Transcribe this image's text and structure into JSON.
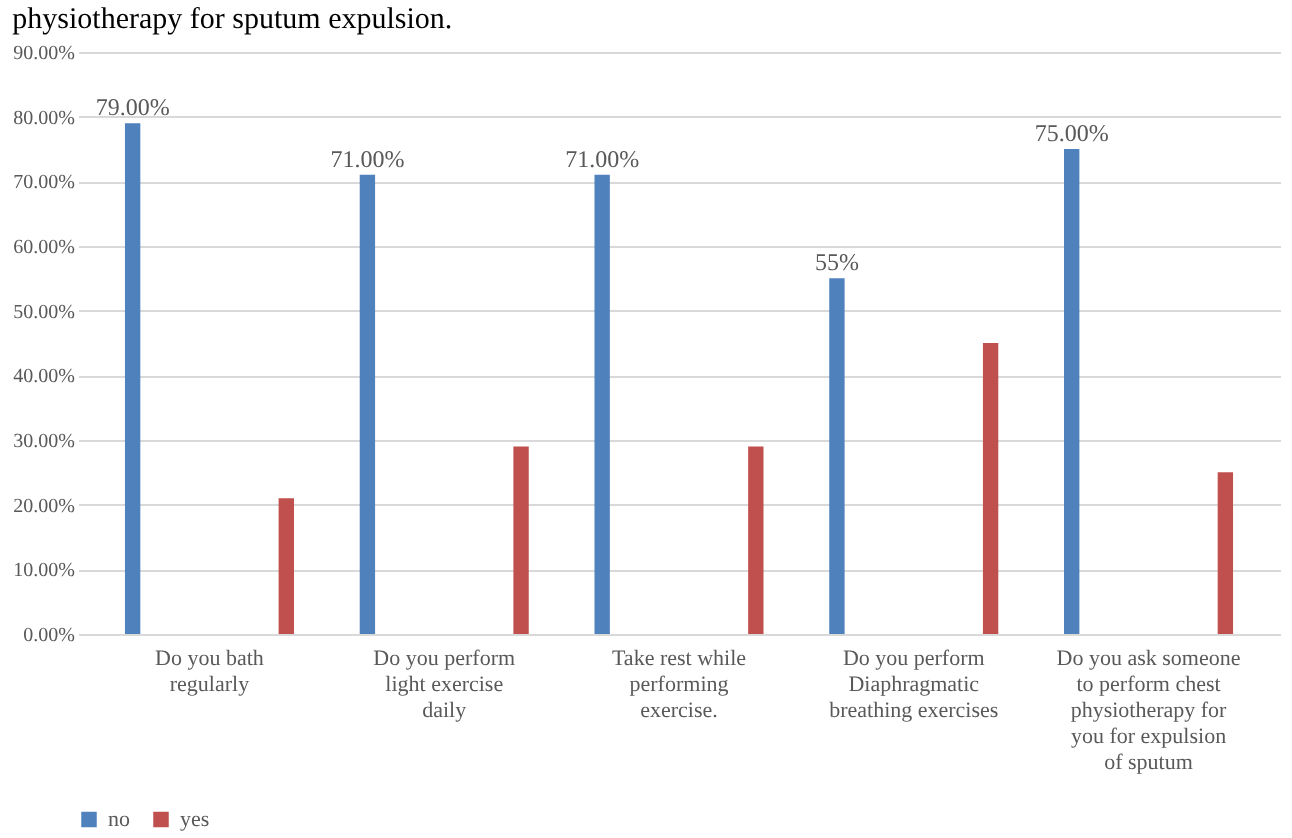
{
  "chart_data": {
    "type": "bar",
    "title": "physiotherapy for sputum expulsion.",
    "categories": [
      "Do you bath regularly",
      "Do you perform light exercise daily",
      "Take rest while performing exercise.",
      "Do you perform Diaphragmatic breathing exercises",
      "Do you ask someone to perform chest physiotherapy for you for expulsion of sputum"
    ],
    "series": [
      {
        "name": "no",
        "color": "#4f81bd",
        "values": [
          79,
          71,
          71,
          55,
          75
        ],
        "value_labels": [
          "79.00%",
          "71.00%",
          "71.00%",
          "55%",
          "75.00%"
        ]
      },
      {
        "name": "yes",
        "color": "#c0504d",
        "values": [
          21,
          29,
          29,
          45,
          25
        ],
        "value_labels": [
          null,
          null,
          null,
          null,
          null
        ]
      }
    ],
    "ylim": [
      0,
      90
    ],
    "yticks": [
      {
        "value": 0,
        "label": "0.00%"
      },
      {
        "value": 10,
        "label": "10.00%"
      },
      {
        "value": 20,
        "label": "20.00%"
      },
      {
        "value": 30,
        "label": "30.00%"
      },
      {
        "value": 40,
        "label": "40.00%"
      },
      {
        "value": 50,
        "label": "50.00%"
      },
      {
        "value": 60,
        "label": "60.00%"
      },
      {
        "value": 70,
        "label": "70.00%"
      },
      {
        "value": 80,
        "label": "80.00%"
      },
      {
        "value": 90,
        "label": "90.00%"
      }
    ],
    "grid": "y",
    "legend": "bottom"
  }
}
